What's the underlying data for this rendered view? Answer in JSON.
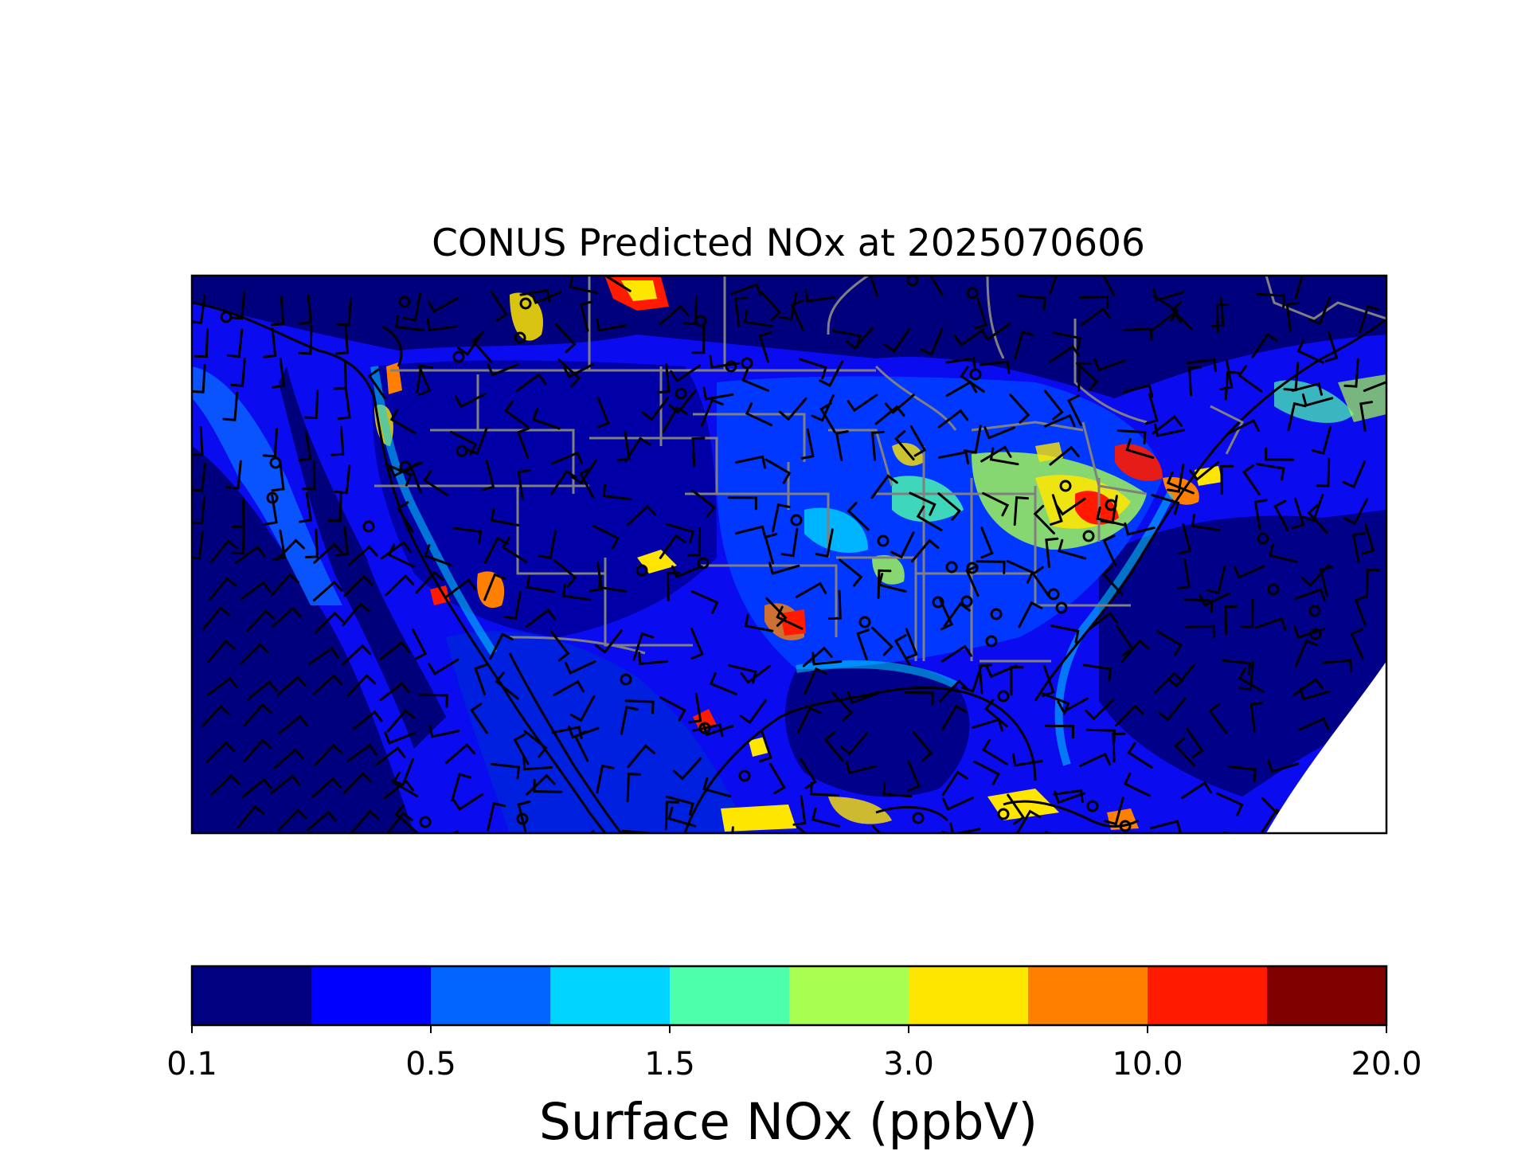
{
  "map": {
    "title": "CONUS Predicted NOx at 2025070606",
    "region": "CONUS",
    "variable": "Surface NOx",
    "model_time": "2025070606",
    "overlays": [
      "surface-nox-shading",
      "wind-barbs",
      "coastlines",
      "state-borders",
      "country-borders",
      "calm-wind-circles"
    ]
  },
  "colorbar": {
    "label": "Surface NOx (ppbV)",
    "tick_labels": [
      "0.1",
      "0.5",
      "1.5",
      "3.0",
      "10.0",
      "20.0"
    ],
    "bins": [
      {
        "color": "#000080"
      },
      {
        "color": "#0000ff"
      },
      {
        "color": "#0066ff"
      },
      {
        "color": "#00d4ff"
      },
      {
        "color": "#4dffaa"
      },
      {
        "color": "#a8ff4f"
      },
      {
        "color": "#ffe600"
      },
      {
        "color": "#ff8000"
      },
      {
        "color": "#ff1a00"
      },
      {
        "color": "#800000"
      }
    ]
  },
  "colors": {
    "ocean_background": "#0a0ae6",
    "coastline": "#000000",
    "state_border": "#808080",
    "wind_barb": "#000000"
  }
}
